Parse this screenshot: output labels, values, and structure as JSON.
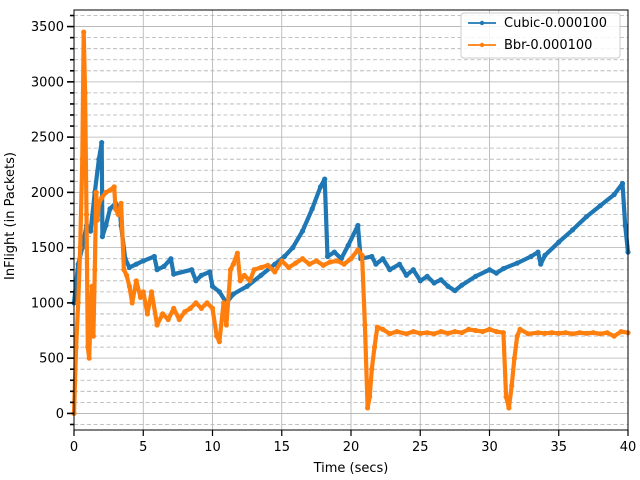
{
  "chart_data": {
    "type": "line",
    "xlabel": "Time (secs)",
    "ylabel": "InFlight (in Packets)",
    "xlim": [
      0,
      40
    ],
    "ylim": [
      -150,
      3650
    ],
    "xticks": [
      0,
      5,
      10,
      15,
      20,
      25,
      30,
      35,
      40
    ],
    "yticks": [
      0,
      500,
      1000,
      1500,
      2000,
      2500,
      3000,
      3500
    ],
    "grid": "major solid, minor dashed",
    "legend_position": "upper right",
    "series": [
      {
        "name": "Cubic-0.000100",
        "color": "#1f77b4",
        "points": [
          [
            0,
            1000
          ],
          [
            0.3,
            1350
          ],
          [
            0.6,
            1500
          ],
          [
            0.9,
            1700
          ],
          [
            1.2,
            1650
          ],
          [
            1.5,
            2000
          ],
          [
            1.8,
            2300
          ],
          [
            2.0,
            2450
          ],
          [
            2.05,
            1600
          ],
          [
            2.3,
            1700
          ],
          [
            2.6,
            1850
          ],
          [
            3.0,
            1900
          ],
          [
            3.3,
            1850
          ],
          [
            3.4,
            1700
          ],
          [
            3.7,
            1400
          ],
          [
            4.0,
            1320
          ],
          [
            4.5,
            1350
          ],
          [
            5.0,
            1380
          ],
          [
            5.8,
            1420
          ],
          [
            6.0,
            1300
          ],
          [
            6.5,
            1330
          ],
          [
            7.0,
            1400
          ],
          [
            7.2,
            1260
          ],
          [
            8.5,
            1300
          ],
          [
            8.8,
            1200
          ],
          [
            9.2,
            1250
          ],
          [
            9.8,
            1280
          ],
          [
            10.0,
            1150
          ],
          [
            10.5,
            1100
          ],
          [
            11.0,
            1000
          ],
          [
            11.5,
            1080
          ],
          [
            12.5,
            1150
          ],
          [
            13.5,
            1250
          ],
          [
            14.5,
            1350
          ],
          [
            15.2,
            1420
          ],
          [
            15.8,
            1500
          ],
          [
            16.5,
            1650
          ],
          [
            17.2,
            1850
          ],
          [
            17.8,
            2050
          ],
          [
            18.1,
            2120
          ],
          [
            18.3,
            1420
          ],
          [
            18.8,
            1460
          ],
          [
            19.3,
            1400
          ],
          [
            19.8,
            1520
          ],
          [
            20.5,
            1700
          ],
          [
            20.7,
            1400
          ],
          [
            21.5,
            1420
          ],
          [
            21.8,
            1350
          ],
          [
            22.3,
            1400
          ],
          [
            22.8,
            1300
          ],
          [
            23.5,
            1350
          ],
          [
            24.0,
            1250
          ],
          [
            24.5,
            1300
          ],
          [
            25.0,
            1200
          ],
          [
            25.5,
            1240
          ],
          [
            26.0,
            1180
          ],
          [
            26.5,
            1210
          ],
          [
            27.0,
            1150
          ],
          [
            27.5,
            1110
          ],
          [
            28.0,
            1160
          ],
          [
            29.0,
            1240
          ],
          [
            30.0,
            1300
          ],
          [
            30.5,
            1270
          ],
          [
            31.0,
            1310
          ],
          [
            32.0,
            1360
          ],
          [
            33.0,
            1420
          ],
          [
            33.5,
            1460
          ],
          [
            33.7,
            1350
          ],
          [
            34.0,
            1430
          ],
          [
            35.0,
            1550
          ],
          [
            36.0,
            1660
          ],
          [
            37.0,
            1780
          ],
          [
            38.0,
            1880
          ],
          [
            39.0,
            1980
          ],
          [
            39.6,
            2080
          ],
          [
            39.8,
            1700
          ],
          [
            40.0,
            1460
          ]
        ]
      },
      {
        "name": "Bbr-0.000100",
        "color": "#ff7f0e",
        "points": [
          [
            0,
            0
          ],
          [
            0.15,
            600
          ],
          [
            0.3,
            1000
          ],
          [
            0.45,
            1500
          ],
          [
            0.6,
            2300
          ],
          [
            0.7,
            3450
          ],
          [
            0.8,
            2900
          ],
          [
            0.9,
            1800
          ],
          [
            1.0,
            600
          ],
          [
            1.1,
            500
          ],
          [
            1.2,
            900
          ],
          [
            1.3,
            1150
          ],
          [
            1.4,
            700
          ],
          [
            1.5,
            1300
          ],
          [
            1.6,
            2000
          ],
          [
            1.7,
            1750
          ],
          [
            1.8,
            1900
          ],
          [
            2.0,
            1950
          ],
          [
            2.3,
            2000
          ],
          [
            2.6,
            2020
          ],
          [
            2.9,
            2050
          ],
          [
            3.0,
            1850
          ],
          [
            3.2,
            1800
          ],
          [
            3.4,
            1900
          ],
          [
            3.6,
            1300
          ],
          [
            3.8,
            1250
          ],
          [
            4.0,
            1150
          ],
          [
            4.2,
            1000
          ],
          [
            4.5,
            1200
          ],
          [
            4.8,
            1050
          ],
          [
            5.0,
            1100
          ],
          [
            5.3,
            900
          ],
          [
            5.6,
            1100
          ],
          [
            6.0,
            800
          ],
          [
            6.4,
            900
          ],
          [
            6.8,
            850
          ],
          [
            7.2,
            950
          ],
          [
            7.6,
            850
          ],
          [
            8.0,
            920
          ],
          [
            8.4,
            950
          ],
          [
            8.8,
            1000
          ],
          [
            9.2,
            950
          ],
          [
            9.6,
            1000
          ],
          [
            10.0,
            950
          ],
          [
            10.3,
            700
          ],
          [
            10.5,
            650
          ],
          [
            10.8,
            1000
          ],
          [
            11.0,
            800
          ],
          [
            11.3,
            1300
          ],
          [
            11.5,
            1350
          ],
          [
            11.8,
            1450
          ],
          [
            12.0,
            1200
          ],
          [
            12.3,
            1250
          ],
          [
            12.7,
            1200
          ],
          [
            13.0,
            1300
          ],
          [
            13.5,
            1320
          ],
          [
            14.0,
            1340
          ],
          [
            14.5,
            1280
          ],
          [
            15.0,
            1380
          ],
          [
            15.5,
            1320
          ],
          [
            16.0,
            1360
          ],
          [
            16.5,
            1400
          ],
          [
            17.0,
            1350
          ],
          [
            17.5,
            1380
          ],
          [
            18.0,
            1340
          ],
          [
            18.5,
            1370
          ],
          [
            19.0,
            1380
          ],
          [
            19.5,
            1350
          ],
          [
            20.0,
            1400
          ],
          [
            20.5,
            1480
          ],
          [
            20.8,
            1430
          ],
          [
            21.0,
            800
          ],
          [
            21.2,
            50
          ],
          [
            21.35,
            150
          ],
          [
            21.5,
            400
          ],
          [
            21.7,
            600
          ],
          [
            21.9,
            780
          ],
          [
            22.3,
            760
          ],
          [
            22.8,
            720
          ],
          [
            23.3,
            740
          ],
          [
            24.0,
            720
          ],
          [
            24.5,
            740
          ],
          [
            25.0,
            725
          ],
          [
            25.5,
            730
          ],
          [
            26.0,
            720
          ],
          [
            26.5,
            740
          ],
          [
            27.0,
            725
          ],
          [
            27.5,
            740
          ],
          [
            28.0,
            730
          ],
          [
            28.5,
            760
          ],
          [
            29.0,
            750
          ],
          [
            29.5,
            740
          ],
          [
            30.0,
            760
          ],
          [
            30.5,
            740
          ],
          [
            31.0,
            730
          ],
          [
            31.2,
            150
          ],
          [
            31.4,
            50
          ],
          [
            31.6,
            250
          ],
          [
            31.8,
            500
          ],
          [
            32.0,
            700
          ],
          [
            32.2,
            760
          ],
          [
            32.8,
            720
          ],
          [
            33.5,
            730
          ],
          [
            34.0,
            725
          ],
          [
            34.5,
            730
          ],
          [
            35.0,
            725
          ],
          [
            35.5,
            730
          ],
          [
            36.0,
            720
          ],
          [
            36.5,
            730
          ],
          [
            37.0,
            725
          ],
          [
            37.5,
            730
          ],
          [
            38.0,
            720
          ],
          [
            38.5,
            730
          ],
          [
            39.0,
            700
          ],
          [
            39.5,
            740
          ],
          [
            40.0,
            730
          ]
        ]
      }
    ]
  }
}
